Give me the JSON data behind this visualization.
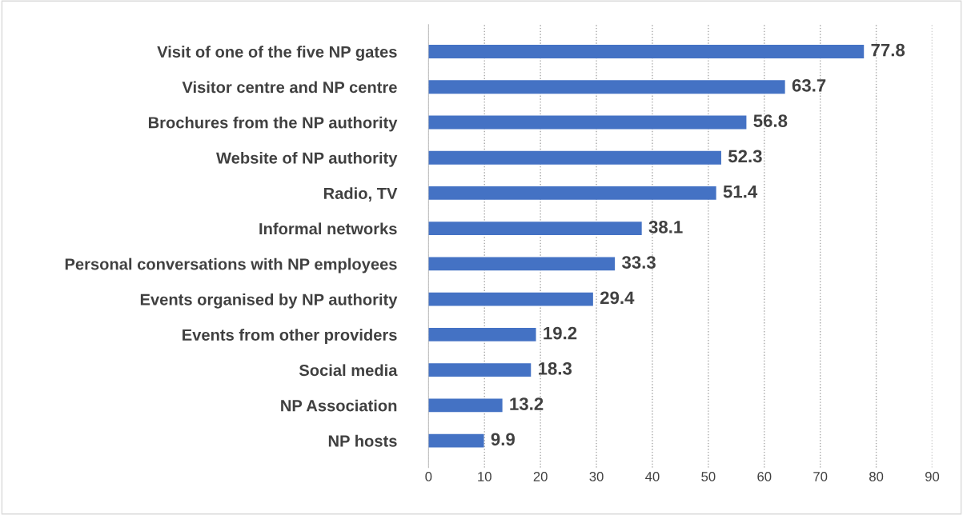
{
  "chart_data": {
    "type": "bar",
    "orientation": "horizontal",
    "categories": [
      "Visit of one of the five NP gates",
      "Visitor centre and NP centre",
      "Brochures from the NP authority",
      "Website of NP authority",
      "Radio, TV",
      "Informal networks",
      "Personal conversations with NP employees",
      "Events organised by NP authority",
      "Events from other providers",
      "Social media",
      "NP Association",
      "NP hosts"
    ],
    "values": [
      77.8,
      63.7,
      56.8,
      52.3,
      51.4,
      38.1,
      33.3,
      29.4,
      19.2,
      18.3,
      13.2,
      9.9
    ],
    "color": "#4472c4",
    "data_labels": true,
    "xlim": [
      0,
      90
    ],
    "xticks": [
      0,
      10,
      20,
      30,
      40,
      50,
      60,
      70,
      80,
      90
    ],
    "grid": "x"
  }
}
